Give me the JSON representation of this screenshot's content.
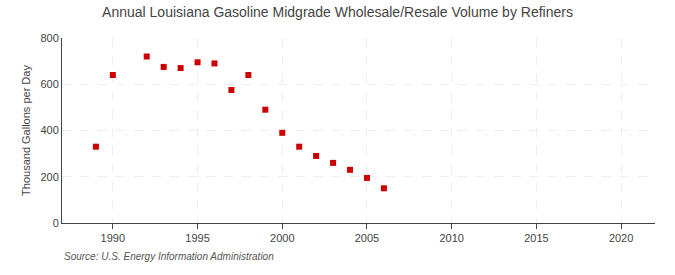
{
  "chart_data": {
    "type": "scatter",
    "title": "Annual Louisiana Gasoline Midgrade Wholesale/Resale Volume by Refiners",
    "ylabel": "Thousand Gallons per Day",
    "annotations": [
      "Source: U.S. Energy Information Administration"
    ],
    "x": [
      1989,
      1990,
      1992,
      1993,
      1994,
      1995,
      1996,
      1997,
      1998,
      1999,
      2000,
      2001,
      2002,
      2003,
      2004,
      2005,
      2006
    ],
    "values": [
      330,
      640,
      720,
      675,
      670,
      695,
      690,
      575,
      640,
      490,
      390,
      330,
      290,
      260,
      230,
      195,
      150
    ],
    "color": "#cc0000",
    "marker": "square",
    "xlim": [
      1987,
      2022
    ],
    "ylim": [
      0,
      800
    ],
    "xticks": [
      1990,
      1995,
      2000,
      2005,
      2010,
      2015,
      2020
    ],
    "yticks": [
      0,
      200,
      400,
      600,
      800
    ],
    "grid": true
  }
}
